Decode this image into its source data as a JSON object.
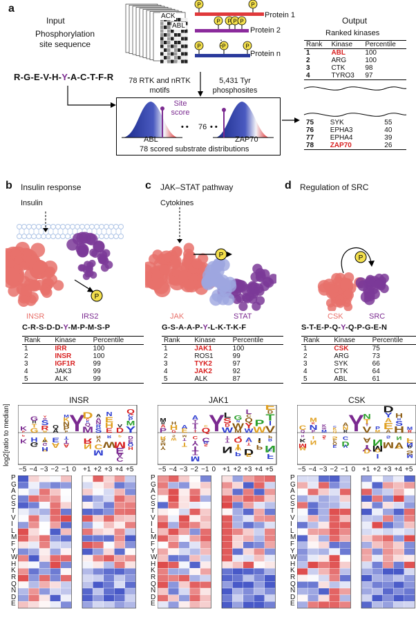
{
  "panel_a": {
    "letter": "a",
    "input_label": "Input",
    "site_label": "Phosphorylation site sequence",
    "sequence": [
      "R",
      "G",
      "E",
      "V",
      "H",
      "Y",
      "A",
      "C",
      "T",
      "F",
      "R"
    ],
    "sequence_separator": "-",
    "motif_labels": [
      "ACK",
      "ABL"
    ],
    "proteins": [
      {
        "name": "Protein 1",
        "color": "#e0393b"
      },
      {
        "name": "Protein 2",
        "color": "#8b2a9c"
      },
      {
        "name": "Protein n",
        "color": "#2a3a9c"
      }
    ],
    "phospho_glyph": "P",
    "motifs_caption": "78 RTK and nRTK motifs",
    "phosphosites_caption": "5,431 Tyr phosphosites",
    "site_score_label": "Site score",
    "dist_left": "ABL",
    "dist_right": "ZAP70",
    "dots_mid": "76",
    "dist_caption": "78 scored substrate distributions",
    "output_label": "Output",
    "ranked_title": "Ranked kinases",
    "table_headers": [
      "Rank",
      "Kinase",
      "Percentile"
    ],
    "top_rows": [
      {
        "rank": "1",
        "kinase": "ABL",
        "pct": "100",
        "hl": true
      },
      {
        "rank": "2",
        "kinase": "ARG",
        "pct": "100",
        "hl": false
      },
      {
        "rank": "3",
        "kinase": "CTK",
        "pct": "98",
        "hl": false
      },
      {
        "rank": "4",
        "kinase": "TYRO3",
        "pct": "97",
        "hl": false
      }
    ],
    "bottom_rows": [
      {
        "rank": "75",
        "kinase": "SYK",
        "pct": "55",
        "hl": false
      },
      {
        "rank": "76",
        "kinase": "EPHA3",
        "pct": "40",
        "hl": false
      },
      {
        "rank": "77",
        "kinase": "EPHA4",
        "pct": "39",
        "hl": false
      },
      {
        "rank": "78",
        "kinase": "ZAP70",
        "pct": "26",
        "hl": true
      }
    ]
  },
  "panels": [
    {
      "letter": "b",
      "title": "Insulin response",
      "ligand": "Insulin",
      "left_protein": "INSR",
      "right_protein": "IRS2",
      "sequence": [
        "C",
        "R",
        "S",
        "D",
        "D",
        "Y",
        "M",
        "P",
        "M",
        "S",
        "P"
      ],
      "rows": [
        {
          "rank": "1",
          "kinase": "IRR",
          "pct": "100",
          "hl": true
        },
        {
          "rank": "2",
          "kinase": "INSR",
          "pct": "100",
          "hl": true
        },
        {
          "rank": "3",
          "kinase": "IGF1R",
          "pct": "99",
          "hl": true
        },
        {
          "rank": "4",
          "kinase": "JAK3",
          "pct": "99",
          "hl": false
        },
        {
          "rank": "5",
          "kinase": "ALK",
          "pct": "99",
          "hl": false
        }
      ],
      "logo_title": "INSR"
    },
    {
      "letter": "c",
      "title": "JAK–STAT pathway",
      "ligand": "Cytokines",
      "left_protein": "JAK",
      "right_protein": "STAT",
      "sequence": [
        "G",
        "S",
        "A",
        "A",
        "P",
        "Y",
        "L",
        "K",
        "T",
        "K",
        "F"
      ],
      "rows": [
        {
          "rank": "1",
          "kinase": "JAK1",
          "pct": "100",
          "hl": true
        },
        {
          "rank": "2",
          "kinase": "ROS1",
          "pct": "99",
          "hl": false
        },
        {
          "rank": "3",
          "kinase": "TYK2",
          "pct": "97",
          "hl": true
        },
        {
          "rank": "4",
          "kinase": "JAK2",
          "pct": "92",
          "hl": true
        },
        {
          "rank": "5",
          "kinase": "ALK",
          "pct": "87",
          "hl": false
        }
      ],
      "logo_title": "JAK1"
    },
    {
      "letter": "d",
      "title": "Regulation of SRC",
      "ligand": "",
      "left_protein": "CSK",
      "right_protein": "SRC",
      "sequence": [
        "S",
        "T",
        "E",
        "P",
        "Q",
        "Y",
        "Q",
        "P",
        "G",
        "E",
        "N"
      ],
      "rows": [
        {
          "rank": "1",
          "kinase": "CSK",
          "pct": "75",
          "hl": true
        },
        {
          "rank": "2",
          "kinase": "ARG",
          "pct": "73",
          "hl": false
        },
        {
          "rank": "3",
          "kinase": "SYK",
          "pct": "66",
          "hl": false
        },
        {
          "rank": "4",
          "kinase": "CTK",
          "pct": "64",
          "hl": false
        },
        {
          "rank": "5",
          "kinase": "ABL",
          "pct": "61",
          "hl": false
        }
      ],
      "logo_title": "CSK"
    }
  ],
  "table_headers": [
    "Rank",
    "Kinase",
    "Percentile"
  ],
  "logo_ylabel": "log2[ratio to median]",
  "positions": [
    "−5",
    "−4",
    "−3",
    "−2",
    "−1",
    "0",
    "+1",
    "+2",
    "+3",
    "+4",
    "+5"
  ],
  "amino_acids": [
    "P",
    "G",
    "A",
    "C",
    "S",
    "T",
    "V",
    "I",
    "L",
    "M",
    "F",
    "Y",
    "W",
    "H",
    "K",
    "R",
    "Q",
    "N",
    "D",
    "E"
  ],
  "colors": {
    "red": "#d82020",
    "purple": "#7b2a90",
    "salmon": "#e8716b",
    "violet": "#7b3a98",
    "lavender": "#9ea6e0",
    "membrane": "#aec4e6"
  }
}
